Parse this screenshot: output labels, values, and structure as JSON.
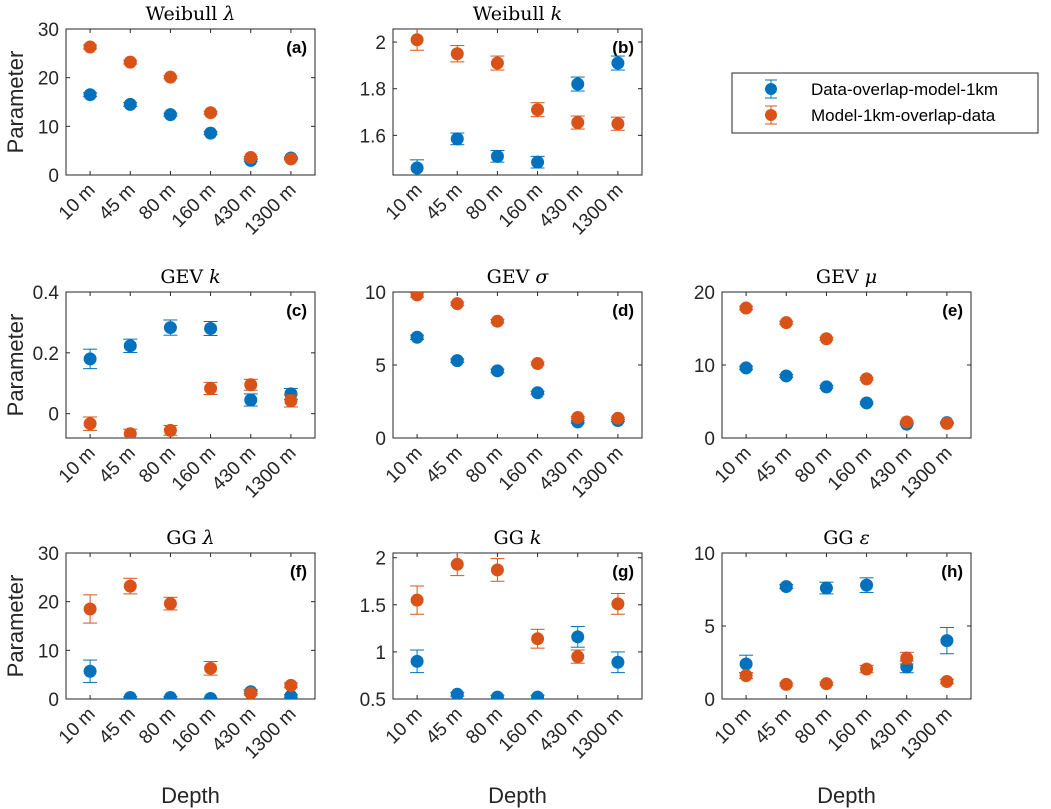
{
  "legend": {
    "position": "top-right",
    "entries": [
      {
        "name": "Data-overlap-model-1km",
        "color": "#0072BD"
      },
      {
        "name": "Model-1km-overlap-data",
        "color": "#D95319"
      }
    ]
  },
  "chart_data": [
    {
      "type": "scatter",
      "id": "a",
      "panel_label": "(a)",
      "title": "Weibull λ",
      "xlabel": "",
      "ylabel": "Parameter",
      "categories": [
        "10 m",
        "45 m",
        "80 m",
        "160 m",
        "430 m",
        "1300 m"
      ],
      "ylim": [
        0,
        30
      ],
      "yticks": [
        0,
        10,
        20,
        30
      ],
      "ytick_labels": [
        "0",
        "10",
        "20",
        "30"
      ],
      "series": [
        {
          "name": "Data-overlap-model-1km",
          "values": [
            16.5,
            14.5,
            12.4,
            8.6,
            3.0,
            3.5
          ],
          "err": [
            0.4,
            0.4,
            0.3,
            0.3,
            0.2,
            0.2
          ]
        },
        {
          "name": "Model-1km-overlap-data",
          "values": [
            26.3,
            23.2,
            20.1,
            12.8,
            3.6,
            3.3
          ],
          "err": [
            0.4,
            0.4,
            0.3,
            0.3,
            0.2,
            0.2
          ]
        }
      ]
    },
    {
      "type": "scatter",
      "id": "b",
      "panel_label": "(b)",
      "title": "Weibull k",
      "xlabel": "",
      "ylabel": "",
      "categories": [
        "10 m",
        "45 m",
        "80 m",
        "160 m",
        "430 m",
        "1300 m"
      ],
      "ylim": [
        1.43,
        2.056
      ],
      "yticks": [
        1.6,
        1.8,
        2.0
      ],
      "ytick_labels": [
        "1.6",
        "1.8",
        "2"
      ],
      "series": [
        {
          "name": "Data-overlap-model-1km",
          "values": [
            1.46,
            1.585,
            1.51,
            1.485,
            1.82,
            1.91
          ],
          "err": [
            0.035,
            0.025,
            0.025,
            0.025,
            0.03,
            0.03
          ]
        },
        {
          "name": "Model-1km-overlap-data",
          "values": [
            2.01,
            1.95,
            1.91,
            1.71,
            1.655,
            1.65
          ],
          "err": [
            0.045,
            0.035,
            0.03,
            0.03,
            0.028,
            0.028
          ]
        }
      ]
    },
    {
      "type": "scatter",
      "id": "c",
      "panel_label": "(c)",
      "title": "GEV k",
      "xlabel": "",
      "ylabel": "Parameter",
      "categories": [
        "10 m",
        "45 m",
        "80 m",
        "160 m",
        "430 m",
        "1300 m"
      ],
      "ylim": [
        -0.08,
        0.4
      ],
      "yticks": [
        0,
        0.2,
        0.4
      ],
      "ytick_labels": [
        "0",
        "0.2",
        "0.4"
      ],
      "series": [
        {
          "name": "Data-overlap-model-1km",
          "values": [
            0.18,
            0.223,
            0.283,
            0.28,
            0.045,
            0.065
          ],
          "err": [
            0.032,
            0.022,
            0.025,
            0.023,
            0.02,
            0.018
          ]
        },
        {
          "name": "Model-1km-overlap-data",
          "values": [
            -0.033,
            -0.066,
            -0.055,
            0.083,
            0.095,
            0.042
          ],
          "err": [
            0.022,
            0.015,
            0.016,
            0.02,
            0.018,
            0.02
          ]
        }
      ]
    },
    {
      "type": "scatter",
      "id": "d",
      "panel_label": "(d)",
      "title": "GEV σ",
      "xlabel": "",
      "ylabel": "",
      "categories": [
        "10 m",
        "45 m",
        "80 m",
        "160 m",
        "430 m",
        "1300 m"
      ],
      "ylim": [
        0,
        10
      ],
      "yticks": [
        0,
        5,
        10
      ],
      "ytick_labels": [
        "0",
        "5",
        "10"
      ],
      "series": [
        {
          "name": "Data-overlap-model-1km",
          "values": [
            6.9,
            5.3,
            4.6,
            3.1,
            1.1,
            1.2
          ],
          "err": [
            0.15,
            0.12,
            0.12,
            0.1,
            0.08,
            0.08
          ]
        },
        {
          "name": "Model-1km-overlap-data",
          "values": [
            9.8,
            9.2,
            8.0,
            5.1,
            1.4,
            1.35
          ],
          "err": [
            0.15,
            0.12,
            0.12,
            0.1,
            0.08,
            0.08
          ]
        }
      ]
    },
    {
      "type": "scatter",
      "id": "e",
      "panel_label": "(e)",
      "title": "GEV μ",
      "xlabel": "",
      "ylabel": "",
      "categories": [
        "10 m",
        "45 m",
        "80 m",
        "160 m",
        "430 m",
        "1300 m"
      ],
      "ylim": [
        0,
        20
      ],
      "yticks": [
        0,
        10,
        20
      ],
      "ytick_labels": [
        "0",
        "10",
        "20"
      ],
      "series": [
        {
          "name": "Data-overlap-model-1km",
          "values": [
            9.6,
            8.5,
            7.0,
            4.8,
            1.9,
            2.1
          ],
          "err": [
            0.25,
            0.2,
            0.2,
            0.15,
            0.1,
            0.1
          ]
        },
        {
          "name": "Model-1km-overlap-data",
          "values": [
            17.8,
            15.8,
            13.6,
            8.1,
            2.2,
            2.0
          ],
          "err": [
            0.25,
            0.2,
            0.2,
            0.15,
            0.1,
            0.1
          ]
        }
      ]
    },
    {
      "type": "scatter",
      "id": "f",
      "panel_label": "(f)",
      "title": "GG λ",
      "xlabel": "Depth",
      "ylabel": "Parameter",
      "categories": [
        "10 m",
        "45 m",
        "80 m",
        "160 m",
        "430 m",
        "1300 m"
      ],
      "ylim": [
        0,
        30
      ],
      "yticks": [
        0,
        10,
        20,
        30
      ],
      "ytick_labels": [
        "0",
        "10",
        "20",
        "30"
      ],
      "series": [
        {
          "name": "Data-overlap-model-1km",
          "values": [
            5.7,
            0.3,
            0.3,
            0.1,
            1.5,
            0.6
          ],
          "err": [
            2.3,
            0.2,
            0.2,
            0.1,
            0.4,
            0.3
          ]
        },
        {
          "name": "Model-1km-overlap-data",
          "values": [
            18.5,
            23.2,
            19.6,
            6.3,
            1.2,
            2.8
          ],
          "err": [
            2.9,
            1.6,
            1.3,
            1.4,
            0.4,
            0.5
          ]
        }
      ]
    },
    {
      "type": "scatter",
      "id": "g",
      "panel_label": "(g)",
      "title": "GG k",
      "xlabel": "Depth",
      "ylabel": "",
      "categories": [
        "10 m",
        "45 m",
        "80 m",
        "160 m",
        "430 m",
        "1300 m"
      ],
      "ylim": [
        0.5,
        2.05
      ],
      "yticks": [
        0.5,
        1,
        1.5,
        2
      ],
      "ytick_labels": [
        "0.5",
        "1",
        "1.5",
        "2"
      ],
      "series": [
        {
          "name": "Data-overlap-model-1km",
          "values": [
            0.9,
            0.55,
            0.52,
            0.52,
            1.16,
            0.89
          ],
          "err": [
            0.12,
            0.02,
            0.02,
            0.02,
            0.11,
            0.11
          ]
        },
        {
          "name": "Model-1km-overlap-data",
          "values": [
            1.55,
            1.93,
            1.87,
            1.14,
            0.95,
            1.51
          ],
          "err": [
            0.15,
            0.12,
            0.12,
            0.1,
            0.07,
            0.11
          ]
        }
      ]
    },
    {
      "type": "scatter",
      "id": "h",
      "panel_label": "(h)",
      "title": "GG ε",
      "xlabel": "Depth",
      "ylabel": "",
      "categories": [
        "10 m",
        "45 m",
        "80 m",
        "160 m",
        "430 m",
        "1300 m"
      ],
      "ylim": [
        0,
        10
      ],
      "yticks": [
        0,
        5,
        10
      ],
      "ytick_labels": [
        "0",
        "5",
        "10"
      ],
      "series": [
        {
          "name": "Data-overlap-model-1km",
          "values": [
            2.4,
            7.7,
            7.6,
            7.8,
            2.2,
            4.0
          ],
          "err": [
            0.6,
            0.15,
            0.4,
            0.5,
            0.4,
            0.9
          ]
        },
        {
          "name": "Model-1km-overlap-data",
          "values": [
            1.6,
            1.0,
            1.05,
            2.05,
            2.8,
            1.2
          ],
          "err": [
            0.2,
            0.1,
            0.1,
            0.25,
            0.4,
            0.15
          ]
        }
      ]
    }
  ]
}
